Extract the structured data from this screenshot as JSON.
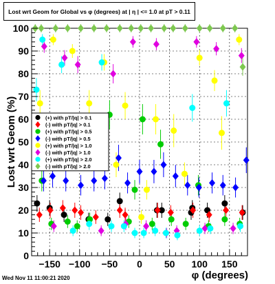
{
  "chart_data": {
    "type": "scatter",
    "title": "Lost wrt Geom for Global vs φ (degrees) at | η | <= 1.0 at pT > 0.11",
    "xlabel": "φ (degrees)",
    "ylabel": "Lost wrt Geom (%)",
    "xlim": [
      -180,
      180
    ],
    "ylim": [
      0,
      100
    ],
    "x_ticks": [
      -150,
      -100,
      -50,
      0,
      50,
      100,
      150
    ],
    "y_ticks": [
      0,
      10,
      20,
      30,
      40,
      50,
      60,
      70,
      80,
      90,
      100
    ],
    "grid": true,
    "legend_position": "left-middle",
    "series": [
      {
        "name": "(+) with pT/|q| > 0.1",
        "color": "#000000",
        "x": [
          -171,
          -150,
          -126,
          -85,
          -53,
          -33,
          29,
          37,
          86,
          88,
          113,
          142,
          172
        ],
        "y": [
          23,
          21,
          18,
          16,
          16,
          24,
          20,
          20,
          19,
          21,
          20,
          23,
          19
        ]
      },
      {
        "name": "(-) with pT/|q| > 0.1",
        "color": "#ff0000",
        "x": [
          -167,
          -149,
          -128,
          -108,
          -98,
          -73,
          -33,
          -24,
          30,
          52,
          89,
          116,
          144,
          171
        ],
        "y": [
          18,
          20,
          21,
          20,
          19,
          17,
          20,
          18,
          20,
          19,
          20,
          18,
          20,
          19
        ]
      },
      {
        "name": "(+) with pT/|q| > 0.5",
        "color": "#00cc00",
        "x": [
          -163,
          -147,
          -120,
          -104,
          -83,
          -50,
          -18,
          -8,
          5,
          21,
          35,
          53,
          77,
          98,
          115,
          142,
          167
        ],
        "y": [
          33,
          14,
          15,
          13,
          16,
          62,
          15,
          29,
          60,
          14,
          49,
          16,
          14,
          31,
          13,
          16,
          14
        ]
      },
      {
        "name": "(-) with pT/|q| > 0.5",
        "color": "#0000ff",
        "x": [
          -160,
          -145,
          -123,
          -98,
          -76,
          -58,
          -35,
          -20,
          0,
          24,
          40,
          60,
          80,
          99,
          121,
          139,
          160,
          178
        ],
        "y": [
          33,
          35,
          33,
          31,
          33,
          34,
          43,
          32,
          37,
          37,
          40,
          35,
          31,
          30,
          32,
          31,
          30,
          42
        ]
      },
      {
        "name": "(+) with pT/|q| > 1.0",
        "color": "#ffff00",
        "x": [
          -166,
          -144,
          -112,
          -106,
          -84,
          -59,
          -39,
          -24,
          3,
          12,
          27,
          57,
          75,
          100,
          125,
          137,
          166
        ],
        "y": [
          67,
          95,
          90,
          52,
          67,
          85,
          40,
          66,
          17,
          29,
          60,
          55,
          36,
          87,
          77,
          54,
          95
        ]
      },
      {
        "name": "(-) with pT/|q| > 1.0",
        "color": "#e000e0",
        "x": [
          -159,
          -143,
          -125,
          -103,
          -64,
          -44,
          -23,
          -11,
          11,
          28,
          45,
          62,
          95,
          109,
          128,
          156,
          170
        ],
        "y": [
          92,
          13,
          87,
          84,
          11,
          80,
          14,
          94,
          13,
          93,
          10,
          11,
          94,
          12,
          91,
          12,
          88
        ]
      },
      {
        "name": "(+) with pT/|q| > 2.0",
        "color": "#00ffff",
        "x": [
          -172,
          -162,
          -130,
          -111,
          -84,
          -63,
          -47,
          -26,
          -8,
          7,
          26,
          44,
          63,
          88,
          100,
          118,
          145,
          168
        ],
        "y": [
          73,
          95,
          84,
          11,
          14,
          85,
          13,
          13,
          10,
          10,
          11,
          10,
          9,
          65,
          11,
          12,
          67,
          13
        ]
      },
      {
        "name": "(-) with pT/|q| > 2.0",
        "color": "#7ec850",
        "x": [
          -174,
          -164,
          -140,
          -120,
          -98,
          -76,
          -55,
          -33,
          -14,
          2,
          19,
          41,
          56,
          76,
          100,
          117,
          139,
          159,
          172
        ],
        "y": [
          100,
          100,
          100,
          100,
          100,
          100,
          100,
          100,
          100,
          100,
          100,
          100,
          100,
          100,
          100,
          100,
          100,
          100,
          83
        ]
      }
    ]
  },
  "timestamp": "Wed Nov 11 11:00:21 2020"
}
